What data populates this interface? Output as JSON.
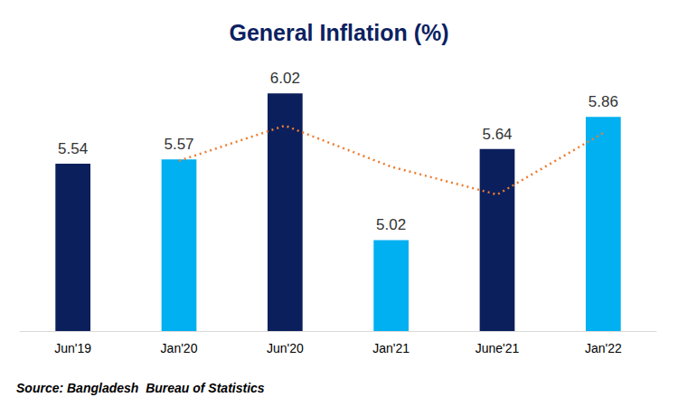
{
  "chart_data": {
    "type": "bar",
    "title": "General Inflation (%)",
    "categories": [
      "Jun'19",
      "Jan'20",
      "Jun'20",
      "Jan'21",
      "June'21",
      "Jan'22"
    ],
    "series": [
      {
        "type": "bar",
        "values": [
          5.54,
          5.57,
          6.02,
          5.02,
          5.64,
          5.86
        ],
        "colors": [
          "#0b1f5c",
          "#00b0f0",
          "#0b1f5c",
          "#00b0f0",
          "#0b1f5c",
          "#00b0f0"
        ],
        "data_labels": true
      },
      {
        "type": "line",
        "values": [
          null,
          5.56,
          5.8,
          5.52,
          5.33,
          5.75
        ],
        "color": "#ed7d31",
        "line_style": "dotted",
        "marker": "none"
      }
    ],
    "ylim": [
      4.4,
      6.2
    ],
    "yticks": [
      4.4,
      6.2
    ],
    "grid": false,
    "tick_labels": "x",
    "annotations": [
      "Source: Bangladesh  Bureau of Statistics"
    ]
  }
}
